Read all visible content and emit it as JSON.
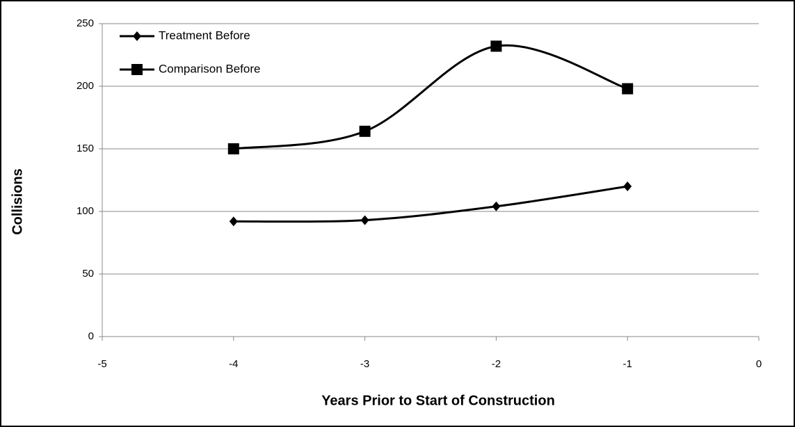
{
  "chart_data": {
    "type": "line",
    "x": [
      -4,
      -3,
      -2,
      -1
    ],
    "series": [
      {
        "name": "Treatment Before",
        "color": "#000000",
        "marker": "diamond",
        "values": [
          92,
          93,
          104,
          120
        ]
      },
      {
        "name": "Comparison Before",
        "color": "#000000",
        "marker": "square",
        "values": [
          150,
          164,
          232,
          198
        ]
      }
    ],
    "xlabel": "Years Prior to Start of Construction",
    "ylabel": "Collisions",
    "xlim": [
      -5,
      0
    ],
    "xticks": [
      -5,
      -4,
      -3,
      -2,
      -1,
      0
    ],
    "ylim": [
      0,
      250
    ],
    "yticks": [
      0,
      50,
      100,
      150,
      200,
      250
    ],
    "grid": true,
    "smooth": true,
    "legend": "upper left"
  }
}
